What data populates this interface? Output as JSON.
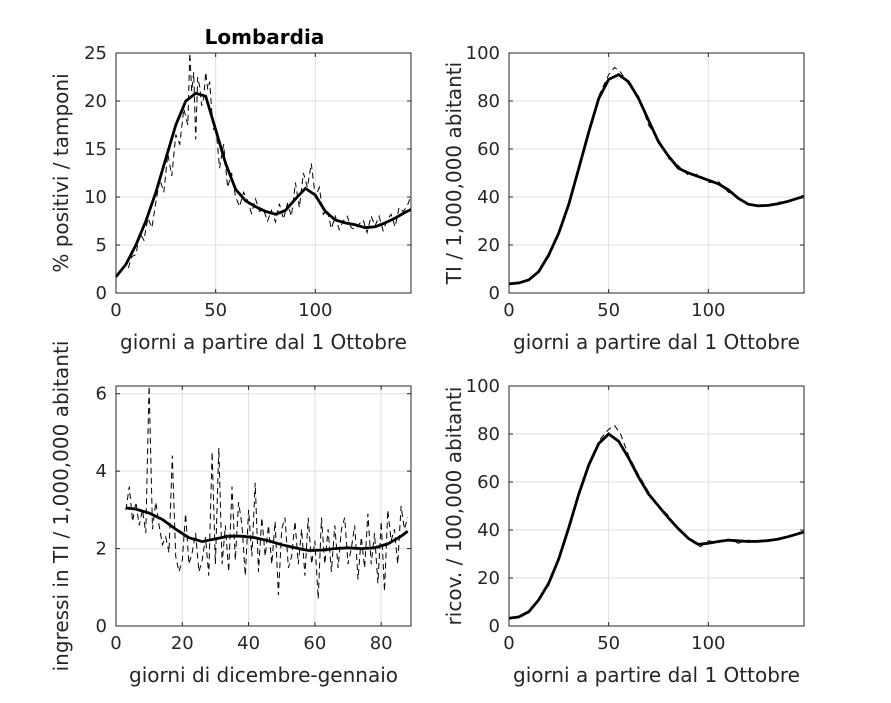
{
  "chart_data": [
    {
      "type": "line",
      "title": "Lombardia",
      "xlabel": "giorni a partire dal 1 Ottobre",
      "ylabel": "% positivi / tamponi",
      "xlim": [
        0,
        148
      ],
      "ylim": [
        0,
        25
      ],
      "xticks": [
        0,
        50,
        100
      ],
      "yticks": [
        0,
        5,
        10,
        15,
        20,
        25
      ],
      "grid": true,
      "series": [
        {
          "style": "smooth",
          "x": [
            0,
            5,
            10,
            15,
            20,
            25,
            30,
            35,
            40,
            45,
            50,
            55,
            60,
            65,
            70,
            75,
            80,
            85,
            90,
            95,
            100,
            105,
            110,
            115,
            120,
            125,
            130,
            135,
            140,
            145,
            148
          ],
          "values": [
            1.7,
            3.0,
            5.0,
            7.5,
            10.5,
            14.0,
            17.5,
            20.0,
            20.8,
            20.5,
            17.0,
            13.5,
            10.8,
            9.6,
            9.0,
            8.5,
            8.2,
            8.6,
            9.8,
            10.9,
            10.2,
            8.5,
            7.6,
            7.3,
            7.1,
            6.8,
            6.9,
            7.3,
            7.8,
            8.4,
            8.7
          ]
        },
        {
          "style": "dashed",
          "x": [
            0,
            2,
            4,
            6,
            8,
            10,
            12,
            14,
            16,
            18,
            20,
            22,
            24,
            26,
            28,
            30,
            32,
            34,
            36,
            37,
            38,
            39,
            40,
            41,
            42,
            43,
            44,
            45,
            46,
            47,
            48,
            49,
            50,
            52,
            54,
            56,
            58,
            60,
            62,
            64,
            66,
            68,
            70,
            72,
            74,
            76,
            78,
            80,
            82,
            84,
            86,
            88,
            90,
            92,
            94,
            96,
            98,
            100,
            102,
            104,
            106,
            108,
            110,
            112,
            114,
            116,
            118,
            120,
            122,
            124,
            126,
            128,
            130,
            132,
            134,
            136,
            138,
            140,
            142,
            144,
            146,
            148
          ],
          "values": [
            1.6,
            2.2,
            2.8,
            2.5,
            3.8,
            4.0,
            6.2,
            5.5,
            7.8,
            6.8,
            9.5,
            11.8,
            10.5,
            14.5,
            12.2,
            16.5,
            15.5,
            19.2,
            17.5,
            25.0,
            21.0,
            23.0,
            16.0,
            22.5,
            21.5,
            19.5,
            20.3,
            23.0,
            21.2,
            22.0,
            19.0,
            17.0,
            17.5,
            13.0,
            15.5,
            11.0,
            12.5,
            10.0,
            9.0,
            10.5,
            9.6,
            8.3,
            9.8,
            8.5,
            8.7,
            7.5,
            8.6,
            7.4,
            9.3,
            7.7,
            9.3,
            8.0,
            11.5,
            8.9,
            12.5,
            11.0,
            13.5,
            10.0,
            11.0,
            8.2,
            8.7,
            6.7,
            8.0,
            6.6,
            7.5,
            8.0,
            6.8,
            6.6,
            7.2,
            7.6,
            6.3,
            8.0,
            7.0,
            8.0,
            6.5,
            7.6,
            8.2,
            6.9,
            8.9,
            8.5,
            9.0,
            10.1
          ]
        }
      ]
    },
    {
      "type": "line",
      "title": "",
      "xlabel": "giorni a partire dal 1 Ottobre",
      "ylabel": "TI / 1,000,000 abitanti",
      "xlim": [
        0,
        148
      ],
      "ylim": [
        0,
        100
      ],
      "xticks": [
        0,
        50,
        100
      ],
      "yticks": [
        0,
        20,
        40,
        60,
        80,
        100
      ],
      "grid": true,
      "series": [
        {
          "style": "smooth",
          "x": [
            0,
            5,
            10,
            15,
            20,
            25,
            30,
            35,
            40,
            45,
            50,
            55,
            60,
            65,
            70,
            75,
            80,
            85,
            90,
            95,
            100,
            105,
            110,
            115,
            120,
            125,
            130,
            135,
            140,
            145,
            148
          ],
          "values": [
            3.8,
            4.2,
            5.5,
            9.0,
            16.0,
            25.0,
            37.0,
            52.0,
            67.0,
            81.0,
            89.0,
            91.0,
            88.0,
            81.0,
            72.0,
            63.0,
            57.0,
            52.0,
            50.0,
            48.5,
            47.0,
            45.5,
            43.0,
            39.5,
            37.0,
            36.3,
            36.5,
            37.2,
            38.2,
            39.5,
            40.2
          ]
        },
        {
          "style": "dashed",
          "x": [
            0,
            5,
            10,
            15,
            20,
            25,
            30,
            35,
            40,
            45,
            50,
            53,
            56,
            60,
            65,
            70,
            75,
            80,
            85,
            90,
            95,
            100,
            105,
            110,
            115,
            120,
            125,
            130,
            135,
            140,
            145,
            148
          ],
          "values": [
            3.5,
            4.0,
            5.0,
            9.5,
            15.0,
            26.0,
            36.0,
            53.0,
            66.0,
            82.0,
            91.0,
            94.0,
            92.0,
            87.0,
            82.0,
            70.0,
            64.0,
            56.0,
            53.0,
            49.0,
            49.5,
            46.0,
            46.5,
            42.0,
            40.0,
            36.5,
            37.0,
            36.0,
            37.8,
            38.0,
            39.5,
            41.0
          ]
        }
      ]
    },
    {
      "type": "line",
      "title": "",
      "xlabel": "giorni di dicembre-gennaio",
      "ylabel": "ingressi in TI / 1,000,000 abitanti",
      "xlim": [
        0,
        89
      ],
      "ylim": [
        0,
        6.2
      ],
      "xticks": [
        0,
        20,
        40,
        60,
        80
      ],
      "yticks": [
        0,
        2,
        4,
        6
      ],
      "grid": true,
      "series": [
        {
          "style": "smooth",
          "x": [
            3,
            6,
            10,
            14,
            18,
            22,
            26,
            30,
            34,
            38,
            42,
            46,
            50,
            54,
            58,
            62,
            66,
            70,
            74,
            78,
            82,
            86,
            88
          ],
          "values": [
            3.05,
            3.02,
            2.92,
            2.75,
            2.5,
            2.28,
            2.18,
            2.25,
            2.32,
            2.32,
            2.28,
            2.2,
            2.1,
            2.02,
            1.95,
            1.96,
            2.0,
            2.02,
            2.0,
            2.02,
            2.12,
            2.32,
            2.45
          ]
        },
        {
          "style": "dashed",
          "x": [
            3,
            4,
            5,
            6,
            7,
            8,
            9,
            10,
            11,
            12,
            13,
            14,
            15,
            16,
            17,
            18,
            19,
            20,
            21,
            22,
            23,
            24,
            25,
            26,
            27,
            28,
            29,
            30,
            31,
            32,
            33,
            34,
            35,
            36,
            37,
            38,
            39,
            40,
            41,
            42,
            43,
            44,
            45,
            46,
            47,
            48,
            49,
            50,
            51,
            52,
            53,
            54,
            55,
            56,
            57,
            58,
            59,
            60,
            61,
            62,
            63,
            64,
            65,
            66,
            67,
            68,
            69,
            70,
            71,
            72,
            73,
            74,
            75,
            76,
            77,
            78,
            79,
            80,
            81,
            82,
            83,
            84,
            85,
            86,
            87,
            88
          ],
          "values": [
            3.0,
            3.6,
            2.7,
            3.2,
            2.6,
            3.0,
            2.4,
            6.2,
            2.5,
            3.2,
            2.6,
            2.1,
            2.3,
            1.9,
            4.4,
            1.8,
            1.4,
            1.7,
            2.9,
            1.6,
            1.9,
            2.4,
            1.4,
            1.7,
            2.3,
            1.3,
            4.5,
            1.6,
            4.6,
            1.6,
            2.6,
            1.4,
            3.6,
            1.7,
            3.2,
            2.6,
            1.3,
            3.0,
            1.8,
            3.7,
            1.4,
            2.8,
            1.8,
            2.6,
            1.6,
            2.7,
            0.8,
            2.5,
            2.8,
            1.5,
            1.8,
            2.7,
            1.6,
            2.5,
            1.3,
            2.8,
            1.6,
            2.2,
            0.7,
            2.8,
            1.6,
            2.5,
            1.4,
            2.6,
            1.5,
            2.5,
            2.8,
            1.6,
            2.0,
            2.6,
            1.2,
            2.3,
            1.5,
            2.9,
            1.6,
            2.4,
            1.1,
            2.7,
            0.9,
            3.0,
            2.2,
            2.5,
            1.6,
            3.1,
            2.5,
            2.8
          ]
        }
      ]
    },
    {
      "type": "line",
      "title": "",
      "xlabel": "giorni a partire dal 1 Ottobre",
      "ylabel": "ricov. / 100,000 abitanti",
      "xlim": [
        0,
        148
      ],
      "ylim": [
        0,
        100
      ],
      "xticks": [
        0,
        50,
        100
      ],
      "yticks": [
        0,
        20,
        40,
        60,
        80,
        100
      ],
      "grid": true,
      "series": [
        {
          "style": "smooth",
          "x": [
            0,
            5,
            10,
            15,
            20,
            25,
            30,
            35,
            40,
            45,
            50,
            55,
            60,
            65,
            70,
            75,
            80,
            85,
            90,
            95,
            100,
            105,
            110,
            115,
            120,
            125,
            130,
            135,
            140,
            145,
            148
          ],
          "values": [
            3.2,
            3.8,
            6.0,
            11.0,
            18.0,
            28.0,
            41.0,
            55.0,
            67.0,
            76.0,
            80.0,
            77.0,
            70.0,
            62.0,
            55.0,
            50.0,
            45.0,
            40.5,
            36.5,
            34.0,
            34.5,
            35.2,
            35.8,
            35.5,
            35.2,
            35.3,
            35.6,
            36.2,
            37.2,
            38.4,
            39.2
          ]
        },
        {
          "style": "dashed",
          "x": [
            0,
            5,
            10,
            15,
            20,
            25,
            30,
            35,
            40,
            45,
            50,
            53,
            56,
            60,
            65,
            70,
            75,
            80,
            85,
            90,
            93,
            96,
            100,
            105,
            110,
            115,
            120,
            125,
            130,
            135,
            140,
            145,
            148
          ],
          "values": [
            3.0,
            3.5,
            5.5,
            11.5,
            17.0,
            29.0,
            40.0,
            56.0,
            66.0,
            77.0,
            82.0,
            83.5,
            80.0,
            71.0,
            63.0,
            56.0,
            50.0,
            46.0,
            40.0,
            36.5,
            34.5,
            33.0,
            35.5,
            34.8,
            36.2,
            34.5,
            35.8,
            35.0,
            36.0,
            36.4,
            37.0,
            38.8,
            39.8
          ]
        }
      ]
    }
  ]
}
